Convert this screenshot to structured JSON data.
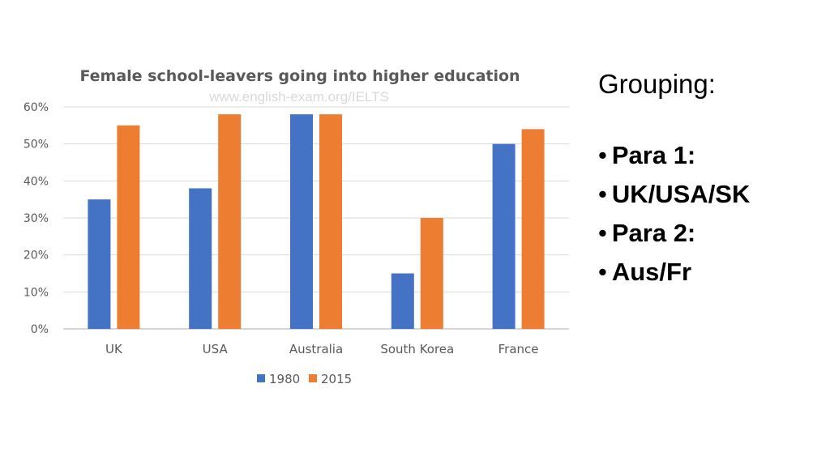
{
  "side_panel": {
    "heading": "Grouping:",
    "bullets": [
      "Para 1:",
      "UK/USA/SK",
      "Para 2:",
      "Aus/Fr"
    ],
    "bullet_glyph": "•"
  },
  "watermark": "www.english-exam.org/IELTS",
  "chart_data": {
    "type": "bar",
    "title": "Female school-leavers going into higher education",
    "xlabel": "",
    "ylabel": "",
    "categories": [
      "UK",
      "USA",
      "Australia",
      "South Korea",
      "France"
    ],
    "series": [
      {
        "name": "1980",
        "values": [
          35,
          38,
          58,
          15,
          50
        ],
        "color": "#4472c4"
      },
      {
        "name": "2015",
        "values": [
          55,
          58,
          58,
          30,
          54
        ],
        "color": "#ed7d31"
      }
    ],
    "ylim": [
      0,
      60
    ],
    "y_ticks": [
      0,
      10,
      20,
      30,
      40,
      50,
      60
    ],
    "y_tick_labels": [
      "0%",
      "10%",
      "20%",
      "30%",
      "40%",
      "50%",
      "60%"
    ],
    "grid": true,
    "legend_position": "bottom"
  }
}
